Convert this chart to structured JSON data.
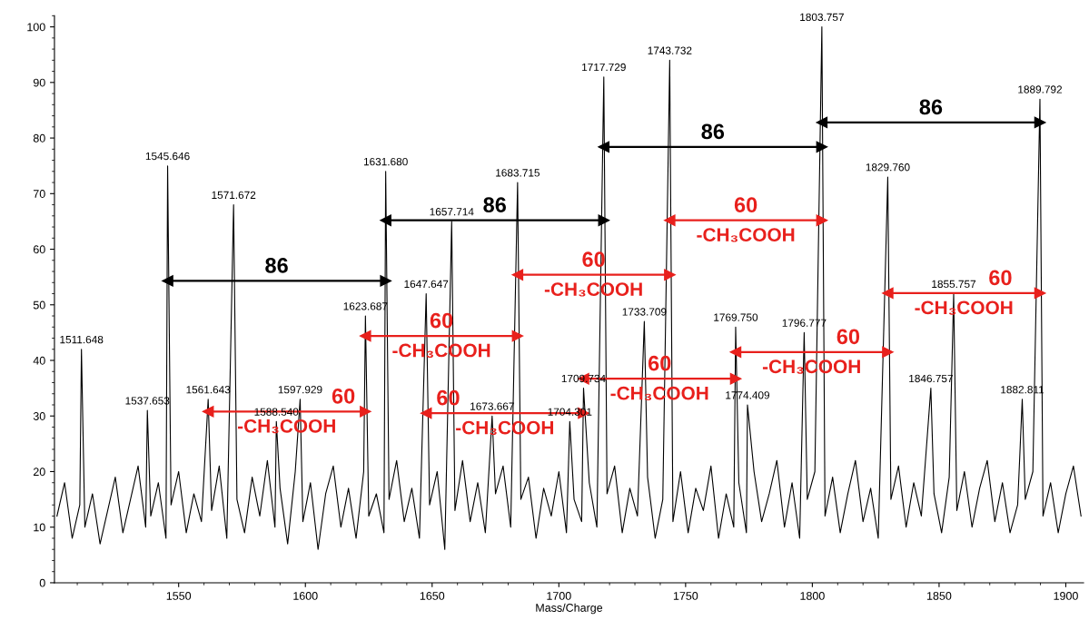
{
  "chart_data": {
    "type": "line",
    "xlabel": "Mass/Charge",
    "xlim": [
      1501,
      1907
    ],
    "ylim": [
      0,
      102
    ],
    "xticks": [
      1550,
      1600,
      1650,
      1700,
      1750,
      1800,
      1850,
      1900
    ],
    "yticks": [
      0,
      10,
      20,
      30,
      40,
      50,
      60,
      70,
      80,
      90,
      100
    ],
    "grid": false,
    "legend": false,
    "marker": "none",
    "line_style": "solid",
    "series": [
      {
        "color": "#000000",
        "x": [
          1502,
          1505,
          1508,
          1511,
          1511.648,
          1513,
          1516,
          1519,
          1522,
          1525,
          1528,
          1531,
          1534,
          1537,
          1537.653,
          1539,
          1542,
          1545,
          1545.646,
          1547,
          1550,
          1553,
          1556,
          1559,
          1561.643,
          1563,
          1566,
          1569,
          1571.672,
          1573,
          1576,
          1579,
          1582,
          1585,
          1588,
          1588.54,
          1590,
          1593,
          1596,
          1597.929,
          1599,
          1602,
          1605,
          1608,
          1611,
          1614,
          1617,
          1620,
          1623,
          1623.687,
          1625,
          1628,
          1631,
          1631.68,
          1633,
          1636,
          1639,
          1642,
          1645,
          1647.647,
          1649,
          1652,
          1655,
          1657.714,
          1659,
          1662,
          1665,
          1668,
          1671,
          1673.667,
          1675,
          1678,
          1681,
          1683.715,
          1685,
          1688,
          1691,
          1694,
          1697,
          1700,
          1703,
          1704.301,
          1706,
          1709,
          1709.734,
          1712,
          1715,
          1717.729,
          1719,
          1722,
          1725,
          1728,
          1731,
          1733.709,
          1735,
          1738,
          1741,
          1743.732,
          1745,
          1748,
          1751,
          1754,
          1757,
          1760,
          1763,
          1766,
          1769,
          1769.75,
          1771,
          1774,
          1774.409,
          1777,
          1780,
          1783,
          1786,
          1789,
          1792,
          1795,
          1796.777,
          1798,
          1801,
          1803.757,
          1805,
          1808,
          1811,
          1814,
          1817,
          1820,
          1823,
          1826,
          1829.76,
          1831,
          1834,
          1837,
          1840,
          1843,
          1846.757,
          1848,
          1851,
          1854,
          1855.757,
          1857,
          1860,
          1863,
          1866,
          1869,
          1872,
          1875,
          1878,
          1881,
          1882.811,
          1884,
          1887,
          1889.792,
          1891,
          1894,
          1897,
          1900,
          1903,
          1906
        ],
        "values": [
          12,
          18,
          8,
          14,
          42,
          10,
          16,
          7,
          13,
          19,
          9,
          15,
          21,
          10,
          31,
          12,
          18,
          8,
          75,
          14,
          20,
          9,
          16,
          11,
          33,
          13,
          21,
          8,
          68,
          15,
          9,
          19,
          12,
          22,
          10,
          29,
          17,
          7,
          20,
          33,
          11,
          18,
          6,
          16,
          21,
          10,
          17,
          8,
          20,
          48,
          12,
          16,
          9,
          74,
          15,
          22,
          11,
          17,
          8,
          52,
          14,
          20,
          6,
          65,
          13,
          22,
          11,
          18,
          9,
          30,
          16,
          21,
          10,
          72,
          15,
          19,
          8,
          17,
          12,
          20,
          9,
          29,
          15,
          11,
          35,
          18,
          10,
          91,
          16,
          21,
          9,
          17,
          12,
          47,
          19,
          8,
          15,
          94,
          11,
          20,
          9,
          17,
          13,
          21,
          8,
          16,
          10,
          46,
          18,
          9,
          32,
          20,
          11,
          16,
          22,
          10,
          18,
          8,
          45,
          15,
          20,
          100,
          12,
          19,
          9,
          16,
          22,
          11,
          17,
          8,
          73,
          15,
          21,
          10,
          18,
          12,
          35,
          16,
          9,
          19,
          52,
          13,
          20,
          10,
          17,
          22,
          11,
          18,
          9,
          14,
          33,
          15,
          20,
          87,
          12,
          18,
          9,
          16,
          21,
          12
        ]
      },
      {
        "type": "line",
        "name": "86",
        "marker": "triangle",
        "color": "#000000",
        "x": [
          1545.646,
          1631.68
        ],
        "values": [
          54.3,
          54.3
        ]
      },
      {
        "type": "line",
        "name": "86",
        "marker": "triangle",
        "color": "#000000",
        "x": [
          1631.68,
          1717.729
        ],
        "values": [
          65.2,
          65.2
        ]
      },
      {
        "type": "line",
        "name": "86",
        "marker": "triangle",
        "color": "#000000",
        "x": [
          1717.729,
          1803.757
        ],
        "values": [
          78.4,
          78.4
        ]
      },
      {
        "type": "line",
        "name": "86",
        "marker": "triangle",
        "color": "#000000",
        "x": [
          1803.757,
          1889.792
        ],
        "values": [
          82.8,
          82.8
        ]
      },
      {
        "type": "line",
        "name": "60",
        "marker": "triangle",
        "color": "#e8201c",
        "x": [
          1561.643,
          1623.687
        ],
        "values": [
          30.8,
          30.8
        ]
      },
      {
        "type": "line",
        "name": "60",
        "marker": "triangle",
        "color": "#e8201c",
        "x": [
          1623.687,
          1683.715
        ],
        "values": [
          44.4,
          44.4
        ]
      },
      {
        "type": "line",
        "name": "60",
        "marker": "triangle",
        "color": "#e8201c",
        "x": [
          1647.647,
          1709.734
        ],
        "values": [
          30.5,
          30.5
        ]
      },
      {
        "type": "line",
        "name": "60",
        "marker": "triangle",
        "color": "#e8201c",
        "x": [
          1683.715,
          1743.732
        ],
        "values": [
          55.4,
          55.4
        ]
      },
      {
        "type": "line",
        "name": "60",
        "marker": "triangle",
        "color": "#e8201c",
        "x": [
          1709.734,
          1769.75
        ],
        "values": [
          36.7,
          36.7
        ]
      },
      {
        "type": "line",
        "name": "60",
        "marker": "triangle",
        "color": "#e8201c",
        "x": [
          1743.732,
          1803.757
        ],
        "values": [
          65.2,
          65.2
        ]
      },
      {
        "type": "line",
        "name": "60",
        "marker": "triangle",
        "color": "#e8201c",
        "x": [
          1769.75,
          1829.76
        ],
        "values": [
          41.5,
          41.5
        ]
      },
      {
        "type": "line",
        "name": "60",
        "marker": "triangle",
        "color": "#e8201c",
        "x": [
          1829.76,
          1889.792
        ],
        "values": [
          52.1,
          52.1
        ]
      }
    ],
    "annotations": [
      {
        "text": "1511.648",
        "x": 1511.648,
        "y": 42
      },
      {
        "text": "1537.653",
        "x": 1537.653,
        "y": 31
      },
      {
        "text": "1545.646",
        "x": 1545.646,
        "y": 75
      },
      {
        "text": "1561.643",
        "x": 1561.643,
        "y": 33
      },
      {
        "text": "1571.672",
        "x": 1571.672,
        "y": 68
      },
      {
        "text": "1588.540",
        "x": 1588.54,
        "y": 29
      },
      {
        "text": "1597.929",
        "x": 1597.929,
        "y": 33
      },
      {
        "text": "1623.687",
        "x": 1623.687,
        "y": 48
      },
      {
        "text": "1631.680",
        "x": 1631.68,
        "y": 74
      },
      {
        "text": "1647.647",
        "x": 1647.647,
        "y": 52
      },
      {
        "text": "1657.714",
        "x": 1657.714,
        "y": 65
      },
      {
        "text": "1673.667",
        "x": 1673.667,
        "y": 30
      },
      {
        "text": "1683.715",
        "x": 1683.715,
        "y": 72
      },
      {
        "text": "1704.301",
        "x": 1704.301,
        "y": 29
      },
      {
        "text": "1709.734",
        "x": 1709.734,
        "y": 35
      },
      {
        "text": "1717.729",
        "x": 1717.729,
        "y": 91
      },
      {
        "text": "1733.709",
        "x": 1733.709,
        "y": 47
      },
      {
        "text": "1743.732",
        "x": 1743.732,
        "y": 94
      },
      {
        "text": "1769.750",
        "x": 1769.75,
        "y": 46
      },
      {
        "text": "1774.409",
        "x": 1774.409,
        "y": 32
      },
      {
        "text": "1796.777",
        "x": 1796.777,
        "y": 45
      },
      {
        "text": "1803.757",
        "x": 1803.757,
        "y": 100
      },
      {
        "text": "1829.760",
        "x": 1829.76,
        "y": 73
      },
      {
        "text": "1846.757",
        "x": 1846.757,
        "y": 35
      },
      {
        "text": "1855.757",
        "x": 1855.757,
        "y": 52
      },
      {
        "text": "1882.811",
        "x": 1882.811,
        "y": 33
      },
      {
        "text": "1889.792",
        "x": 1889.792,
        "y": 87
      },
      "-CH₃COOH",
      "-CH₃COOH",
      "-CH₃COOH",
      "-CH₃COOH",
      "-CH₃COOH",
      "-CH₃COOH",
      "-CH₃COOH",
      "-CH₃COOH"
    ]
  }
}
